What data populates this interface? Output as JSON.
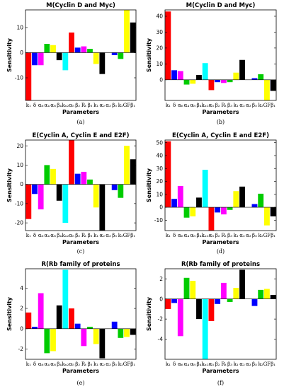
{
  "colors": {
    "red": "#ff0000",
    "blue": "#0000ff",
    "magenta": "#ff00ff",
    "green": "#00cc00",
    "yellow": "#ffff00",
    "black": "#000000",
    "cyan": "#00ffff"
  },
  "bar_colors": [
    "red",
    "blue",
    "magenta",
    "green",
    "yellow",
    "black",
    "cyan",
    "red",
    "blue",
    "magenta",
    "green",
    "yellow",
    "black",
    "red",
    "blue",
    "green",
    "yellow"
  ],
  "chart_data": [
    {
      "type": "bar",
      "caption": "(a)",
      "title": "M(Cyclin D and Myc)",
      "xlabel": "Parameters",
      "ylabel": "Sensitivity",
      "categories": [
        "k1",
        "δ",
        "α6",
        "α4",
        "α8",
        "β4",
        "kx2",
        "α5",
        "β2",
        "Rτ",
        "β3",
        "k1",
        "α2",
        "α3",
        "β5",
        "k2",
        "GF",
        "β1"
      ],
      "tick_text": [
        "k₁",
        "δ",
        "α₆",
        "α₄",
        "α₈",
        "β₄",
        "kₓ₂",
        "α₅",
        "β₂",
        "Rₜ",
        "β₃",
        "k₁",
        "α₂",
        "α₃",
        "β₅",
        "k₂",
        "GF",
        "β₁"
      ],
      "values": [
        -19,
        -5,
        -5,
        3.5,
        3,
        -3,
        -7,
        8,
        2,
        2.5,
        1.5,
        -4.5,
        -8.5,
        0,
        -1,
        -2.5,
        17,
        12
      ],
      "ylim": [
        -19,
        17
      ],
      "yticks": [
        -10,
        0,
        10
      ]
    },
    {
      "type": "bar",
      "caption": "(b)",
      "title": "M(Cyclin D and Myc)",
      "xlabel": "Parameters",
      "ylabel": "Sensitivity",
      "categories": [
        "k1",
        "δ",
        "α6",
        "α4",
        "α8",
        "β4",
        "kx2",
        "α5",
        "β2",
        "Rτ",
        "β3",
        "k1",
        "α2",
        "α3",
        "β5",
        "k2",
        "GF",
        "β1"
      ],
      "tick_text": [
        "k₁",
        "δ",
        "α₆",
        "α₄",
        "α₈",
        "β₄",
        "kₓ₂",
        "α₅",
        "β₂",
        "Rₜ",
        "β₃",
        "k₁",
        "α₂",
        "α₃",
        "β₅",
        "k₂",
        "GF",
        "β₁"
      ],
      "values": [
        43,
        6,
        5.5,
        -3,
        -2.5,
        3,
        10.5,
        -6.5,
        -1.5,
        -2,
        -1.5,
        4.5,
        12.5,
        0,
        1,
        3.5,
        -13,
        -7
      ],
      "ylim": [
        -13,
        44
      ],
      "yticks": [
        0,
        10,
        20,
        30,
        40
      ]
    },
    {
      "type": "bar",
      "caption": "(c)",
      "title": "E(Cyclin A, Cyclin E and E2F)",
      "xlabel": "Parameters",
      "ylabel": "Sensitivity",
      "categories": [
        "k1",
        "δ",
        "α6",
        "α4",
        "α8",
        "β4",
        "kx2",
        "α5",
        "β2",
        "Rτ",
        "β3",
        "k1",
        "α2",
        "α3",
        "β5",
        "k2",
        "GF",
        "β1"
      ],
      "tick_text": [
        "k₁",
        "δ",
        "α₆",
        "α₄",
        "α₈",
        "β₄",
        "kₓ₂",
        "α₅",
        "β₂",
        "Rₜ",
        "β₃",
        "k₁",
        "α₂",
        "α₃",
        "β₅",
        "k₂",
        "GF",
        "β₁"
      ],
      "values": [
        -18,
        -5,
        -13,
        10,
        8,
        -8.5,
        -20,
        23,
        5.5,
        6.5,
        2.5,
        -12,
        -24,
        0,
        -3,
        -7,
        20,
        13
      ],
      "ylim": [
        -24,
        23
      ],
      "yticks": [
        -20,
        -10,
        0,
        10,
        20
      ]
    },
    {
      "type": "bar",
      "caption": "(d)",
      "title": "E(Cyclin A, Cyclin E and E2F)",
      "xlabel": "Parameters",
      "ylabel": "Sensitivity",
      "categories": [
        "k1",
        "δ",
        "α6",
        "α4",
        "α8",
        "β4",
        "kx2",
        "α5",
        "β2",
        "Rτ",
        "β3",
        "k1",
        "α2",
        "α3",
        "β5",
        "k2",
        "GF",
        "β1"
      ],
      "tick_text": [
        "k₁",
        "δ",
        "α₆",
        "α₄",
        "α₈",
        "β₄",
        "kₓ₂",
        "α₅",
        "β₂",
        "Rₜ",
        "β₃",
        "k₁",
        "α₂",
        "α₃",
        "β₅",
        "k₂",
        "GF",
        "β₁"
      ],
      "values": [
        51,
        6.5,
        16.5,
        -8,
        -7,
        7.5,
        29,
        -18,
        -4,
        -5.5,
        -2,
        12.5,
        16,
        0,
        2.5,
        10.5,
        -14,
        -7
      ],
      "ylim": [
        -18,
        52
      ],
      "yticks": [
        -10,
        0,
        10,
        20,
        30,
        40,
        50
      ]
    },
    {
      "type": "bar",
      "caption": "(e)",
      "title": "R(Rb family of proteins",
      "xlabel": "Parameters",
      "ylabel": "Sensitivity",
      "categories": [
        "k1",
        "δ",
        "α6",
        "α4",
        "α8",
        "β4",
        "kx2",
        "α5",
        "β2",
        "Rτ",
        "β3",
        "k1",
        "α2",
        "α3",
        "β5",
        "k2",
        "GF",
        "β1"
      ],
      "tick_text": [
        "k₁",
        "δ",
        "α₆",
        "α₄",
        "α₈",
        "β₄",
        "kₓ₂",
        "α₅",
        "β₂",
        "Rₜ",
        "β₃",
        "k₁",
        "α₂",
        "α₃",
        "β₅",
        "k₂",
        "GF",
        "β₁"
      ],
      "values": [
        1.6,
        0.2,
        3.5,
        -2.4,
        -2.2,
        2.3,
        5.8,
        2.0,
        0.5,
        -1.7,
        0.2,
        -1.5,
        -2.9,
        0,
        0.7,
        -0.9,
        -0.8,
        -0.6
      ],
      "ylim": [
        -3,
        5.9
      ],
      "yticks": [
        -2,
        0,
        2,
        4
      ]
    },
    {
      "type": "bar",
      "caption": "(f)",
      "title": "R(Rb family of proteins",
      "xlabel": "Parameters",
      "ylabel": "Sensitivity",
      "categories": [
        "k1",
        "δ",
        "α6",
        "α4",
        "α8",
        "β4",
        "kx2",
        "α5",
        "β2",
        "Rτ",
        "β3",
        "k1",
        "α2",
        "α3",
        "β5",
        "k2",
        "GF",
        "β1"
      ],
      "tick_text": [
        "k₁",
        "δ",
        "α₆",
        "α₄",
        "α₈",
        "β₄",
        "kₓ₂",
        "α₅",
        "β₂",
        "Rₜ",
        "β₃",
        "k₁",
        "α₂",
        "α₃",
        "β₅",
        "k₂",
        "GF",
        "β₁"
      ],
      "values": [
        -1.0,
        -0.4,
        -3.7,
        2.1,
        1.8,
        -2.0,
        -6.0,
        -2.2,
        -0.5,
        1.6,
        -0.3,
        1.1,
        2.9,
        0,
        -0.7,
        0.9,
        1.0,
        0.4
      ],
      "ylim": [
        -6,
        3
      ],
      "yticks": [
        -4,
        -2,
        0,
        2
      ]
    }
  ]
}
